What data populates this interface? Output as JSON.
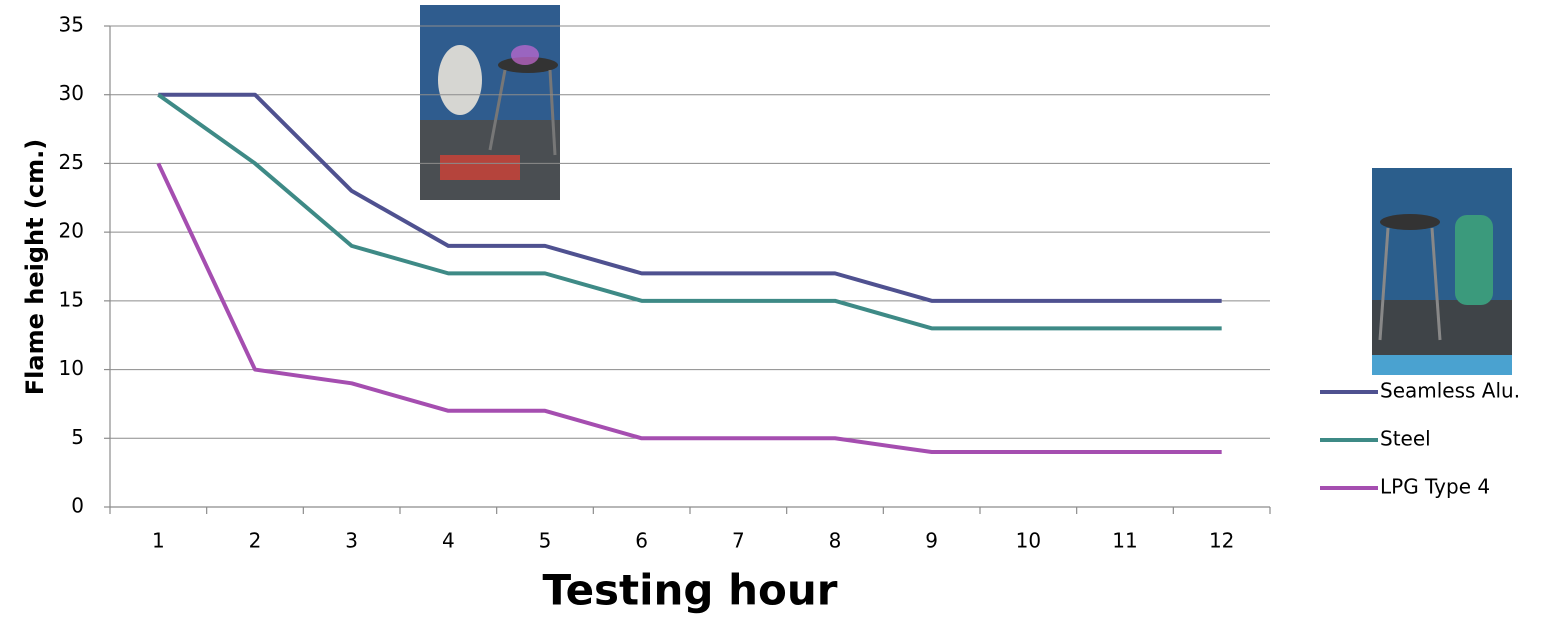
{
  "chart_data": {
    "type": "line",
    "categories": [
      "1",
      "2",
      "3",
      "4",
      "5",
      "6",
      "7",
      "8",
      "9",
      "10",
      "11",
      "12"
    ],
    "series": [
      {
        "name": "Seamless Alu.",
        "color": "#4f5190",
        "values": [
          30,
          30,
          23,
          19,
          19,
          17,
          17,
          17,
          15,
          15,
          15,
          15
        ]
      },
      {
        "name": "Steel",
        "color": "#3e8a86",
        "values": [
          30,
          25,
          19,
          17,
          17,
          15,
          15,
          15,
          13,
          13,
          13,
          13
        ]
      },
      {
        "name": "LPG Type 4",
        "color": "#a54eb0",
        "values": [
          25,
          10,
          9,
          7,
          7,
          5,
          5,
          5,
          4,
          4,
          4,
          4
        ]
      }
    ],
    "ylabel": "Flame height (cm.)",
    "xlabel": "Testing hour",
    "ylim": [
      0,
      35
    ],
    "yticks": [
      0,
      5,
      10,
      15,
      20,
      25,
      30,
      35
    ],
    "grid": true,
    "legend": "right"
  }
}
